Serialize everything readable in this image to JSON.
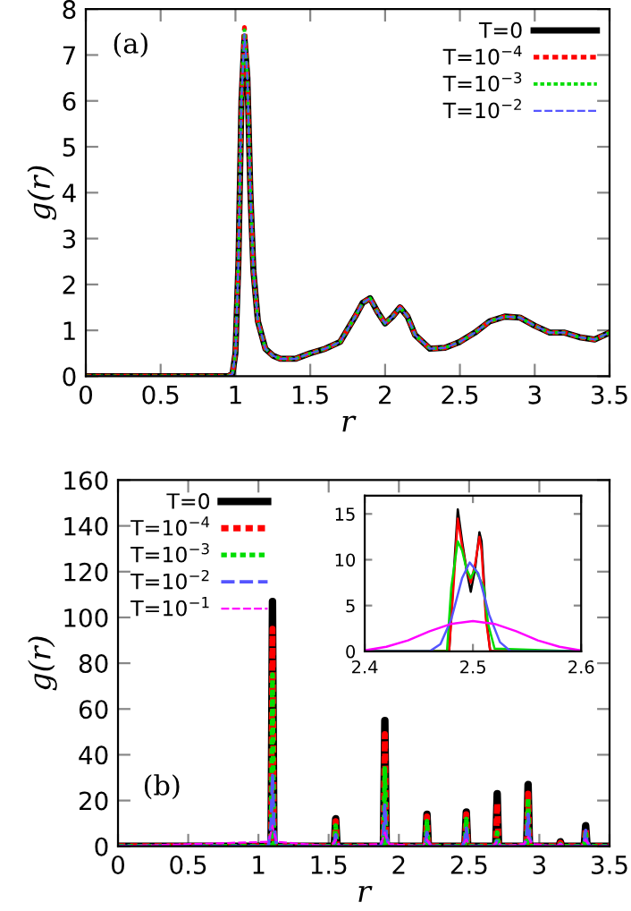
{
  "chart_data": [
    {
      "type": "line",
      "xlabel": "r",
      "ylabel": "g(r)",
      "annotations": [
        "(a)"
      ],
      "legend": "top right",
      "grid": false,
      "x": [
        0,
        0.95,
        0.98,
        1.0,
        1.02,
        1.04,
        1.06,
        1.08,
        1.1,
        1.12,
        1.15,
        1.2,
        1.25,
        1.3,
        1.4,
        1.5,
        1.6,
        1.7,
        1.8,
        1.85,
        1.9,
        1.95,
        2.0,
        2.05,
        2.1,
        2.15,
        2.2,
        2.3,
        2.4,
        2.5,
        2.6,
        2.7,
        2.8,
        2.9,
        3.0,
        3.1,
        3.2,
        3.3,
        3.4,
        3.5
      ],
      "series": [
        {
          "name": "T=0",
          "color": "#000000",
          "line_style": "solid",
          "values": [
            0,
            0,
            0.05,
            0.5,
            2.5,
            6,
            7.4,
            6.5,
            4,
            2.3,
            1.2,
            0.6,
            0.45,
            0.38,
            0.38,
            0.5,
            0.6,
            0.75,
            1.3,
            1.6,
            1.7,
            1.4,
            1.15,
            1.3,
            1.5,
            1.3,
            0.9,
            0.6,
            0.62,
            0.75,
            0.95,
            1.2,
            1.3,
            1.28,
            1.1,
            0.95,
            0.95,
            0.85,
            0.8,
            0.95
          ]
        },
        {
          "name": "T=10$^{−4}$",
          "color": "#ff0000",
          "line_style": "dotted",
          "values": [
            0,
            0,
            0.05,
            0.5,
            2.5,
            6,
            7.6,
            6.5,
            4,
            2.3,
            1.2,
            0.6,
            0.45,
            0.38,
            0.38,
            0.5,
            0.6,
            0.75,
            1.3,
            1.6,
            1.7,
            1.4,
            1.15,
            1.3,
            1.5,
            1.3,
            0.9,
            0.6,
            0.62,
            0.75,
            0.95,
            1.2,
            1.3,
            1.28,
            1.1,
            0.95,
            0.95,
            0.85,
            0.8,
            0.95
          ]
        },
        {
          "name": "T=10$^{−3}$",
          "color": "#00dd00",
          "line_style": "dotted",
          "values": [
            0,
            0,
            0.05,
            0.5,
            2.5,
            6,
            7.55,
            6.5,
            4,
            2.3,
            1.2,
            0.6,
            0.45,
            0.38,
            0.38,
            0.5,
            0.6,
            0.75,
            1.3,
            1.6,
            1.7,
            1.4,
            1.15,
            1.3,
            1.5,
            1.3,
            0.9,
            0.6,
            0.62,
            0.75,
            0.95,
            1.2,
            1.3,
            1.28,
            1.1,
            0.95,
            0.95,
            0.85,
            0.8,
            0.95
          ]
        },
        {
          "name": "T=10$^{−2}$",
          "color": "#5555ff",
          "line_style": "dashed",
          "values": [
            0,
            0,
            0.05,
            0.5,
            2.5,
            6,
            7.45,
            6.5,
            4,
            2.3,
            1.2,
            0.6,
            0.45,
            0.38,
            0.38,
            0.5,
            0.6,
            0.75,
            1.3,
            1.6,
            1.7,
            1.4,
            1.15,
            1.3,
            1.5,
            1.3,
            0.9,
            0.6,
            0.62,
            0.75,
            0.95,
            1.2,
            1.3,
            1.28,
            1.1,
            0.95,
            0.95,
            0.85,
            0.8,
            0.95
          ]
        }
      ],
      "xlim": [
        0,
        3.5
      ],
      "ylim": [
        0,
        8
      ],
      "xticks": [
        0,
        0.5,
        1,
        1.5,
        2,
        2.5,
        3,
        3.5
      ],
      "yticks": [
        0,
        1,
        2,
        3,
        4,
        5,
        6,
        7,
        8
      ]
    },
    {
      "type": "line",
      "xlabel": "r",
      "ylabel": "g(r)",
      "annotations": [
        "(b)"
      ],
      "legend": "top left",
      "grid": false,
      "x": [
        0,
        1.07,
        1.09,
        1.1,
        1.11,
        1.13,
        1.52,
        1.54,
        1.55,
        1.56,
        1.58,
        1.87,
        1.89,
        1.9,
        1.91,
        1.93,
        2.17,
        2.19,
        2.2,
        2.21,
        2.23,
        2.45,
        2.47,
        2.48,
        2.49,
        2.51,
        2.67,
        2.69,
        2.7,
        2.71,
        2.73,
        2.89,
        2.91,
        2.92,
        2.93,
        2.95,
        3.12,
        3.14,
        3.15,
        3.16,
        3.18,
        3.3,
        3.32,
        3.33,
        3.34,
        3.36,
        3.5
      ],
      "series": [
        {
          "name": "T=0",
          "color": "#000000",
          "line_style": "solid",
          "values": [
            0,
            0,
            0,
            107,
            0,
            0,
            0,
            0,
            12,
            0,
            0,
            0,
            0,
            55,
            0,
            0,
            0,
            0,
            14,
            0,
            0,
            0,
            0,
            15,
            0,
            0,
            0,
            0,
            23,
            0,
            0,
            0,
            0,
            27,
            0,
            0,
            0,
            0,
            2,
            0,
            0,
            0,
            0,
            9,
            0,
            0,
            0
          ]
        },
        {
          "name": "T=10$^{−4}$",
          "color": "#ff0000",
          "line_style": "dotted",
          "values": [
            0,
            0,
            0,
            95,
            0,
            0,
            0,
            0,
            11,
            0,
            0,
            0,
            0,
            49,
            0,
            0,
            0,
            0,
            13,
            0,
            0,
            0,
            0,
            14,
            0,
            0,
            0,
            0,
            19,
            0,
            0,
            0,
            0,
            23,
            0,
            0,
            0,
            0,
            1.5,
            0,
            0,
            0,
            0,
            8,
            0,
            0,
            0
          ]
        },
        {
          "name": "T=10$^{−3}$",
          "color": "#00dd00",
          "line_style": "dotted",
          "values": [
            0,
            0,
            0,
            75,
            0,
            0,
            0,
            0,
            9,
            0,
            0,
            0,
            0,
            34,
            0,
            0,
            0,
            0,
            11,
            0,
            0,
            0,
            0,
            12,
            0,
            0,
            0,
            0,
            6,
            0,
            0,
            0,
            0,
            21,
            0,
            0,
            0,
            0,
            1,
            0,
            0,
            0,
            0,
            7,
            0,
            0,
            0
          ]
        },
        {
          "name": "T=10$^{−2}$",
          "color": "#5555ff",
          "line_style": "dashed",
          "values": [
            0,
            0,
            9,
            31,
            9,
            0,
            0,
            1.5,
            5,
            1.5,
            0,
            0,
            5,
            18,
            5,
            0,
            0,
            2,
            6,
            2,
            0,
            0,
            2.5,
            8,
            2.5,
            0,
            0,
            1,
            3,
            1,
            0,
            0,
            4,
            14,
            4,
            0,
            0,
            0.3,
            1,
            0.3,
            0,
            0,
            2,
            7,
            2,
            0,
            0
          ]
        },
        {
          "name": "T=10$^{−1}$",
          "color": "#ff00ff",
          "line_style": "dashed",
          "values": [
            0,
            2,
            6,
            9,
            6,
            2,
            0,
            2,
            3,
            2,
            0,
            1,
            4,
            6,
            4,
            1,
            0,
            2,
            3,
            2,
            0,
            0,
            2,
            3,
            2,
            0,
            0,
            1.5,
            2,
            1.5,
            0,
            1,
            3,
            4,
            3,
            1,
            0,
            0.8,
            1,
            0.8,
            0,
            0,
            2,
            3,
            2,
            0,
            0
          ]
        }
      ],
      "xlim": [
        0,
        3.5
      ],
      "ylim": [
        0,
        160
      ],
      "xticks": [
        0,
        0.5,
        1,
        1.5,
        2,
        2.5,
        3,
        3.5
      ],
      "yticks": [
        0,
        20,
        40,
        60,
        80,
        100,
        120,
        140,
        160
      ]
    },
    {
      "type": "line",
      "legend": false,
      "grid": false,
      "series": [
        {
          "color": "#000000",
          "line_style": "solid",
          "x": [
            2.4,
            2.478,
            2.482,
            2.486,
            2.49,
            2.494,
            2.498,
            2.502,
            2.506,
            2.508,
            2.512,
            2.516,
            2.6
          ],
          "values": [
            0,
            0,
            8,
            15.5,
            12,
            9,
            6.5,
            9,
            13,
            12,
            4,
            0,
            0
          ]
        },
        {
          "color": "#ff0000",
          "line_style": "solid",
          "x": [
            2.4,
            2.478,
            2.482,
            2.486,
            2.49,
            2.494,
            2.498,
            2.502,
            2.506,
            2.508,
            2.512,
            2.516,
            2.6
          ],
          "values": [
            0,
            0,
            7,
            14.5,
            11.5,
            9,
            7.5,
            9.5,
            12.5,
            11,
            3.5,
            0,
            0
          ]
        },
        {
          "color": "#00dd00",
          "line_style": "solid",
          "x": [
            2.4,
            2.476,
            2.48,
            2.486,
            2.49,
            2.494,
            2.498,
            2.502,
            2.506,
            2.51,
            2.514,
            2.52,
            2.6
          ],
          "values": [
            0,
            0,
            7,
            12,
            11,
            9,
            8,
            9,
            8,
            7,
            3,
            0.3,
            0
          ]
        },
        {
          "color": "#5555ff",
          "line_style": "solid",
          "x": [
            2.4,
            2.46,
            2.47,
            2.48,
            2.49,
            2.497,
            2.505,
            2.515,
            2.525,
            2.535,
            2.6
          ],
          "values": [
            0,
            0,
            0.8,
            3.5,
            8,
            9.7,
            8.5,
            4,
            1,
            0,
            0
          ]
        },
        {
          "color": "#ff00ff",
          "line_style": "solid",
          "x": [
            2.4,
            2.42,
            2.44,
            2.46,
            2.48,
            2.5,
            2.52,
            2.54,
            2.56,
            2.58,
            2.6
          ],
          "values": [
            0.1,
            0.5,
            1.2,
            2.2,
            3.0,
            3.3,
            3.0,
            2.2,
            1.2,
            0.5,
            0.1
          ]
        }
      ],
      "xlim": [
        2.4,
        2.6
      ],
      "ylim": [
        0,
        17
      ],
      "xticks": [
        2.4,
        2.5,
        2.6
      ],
      "yticks": [
        0,
        5,
        10,
        15
      ]
    }
  ]
}
